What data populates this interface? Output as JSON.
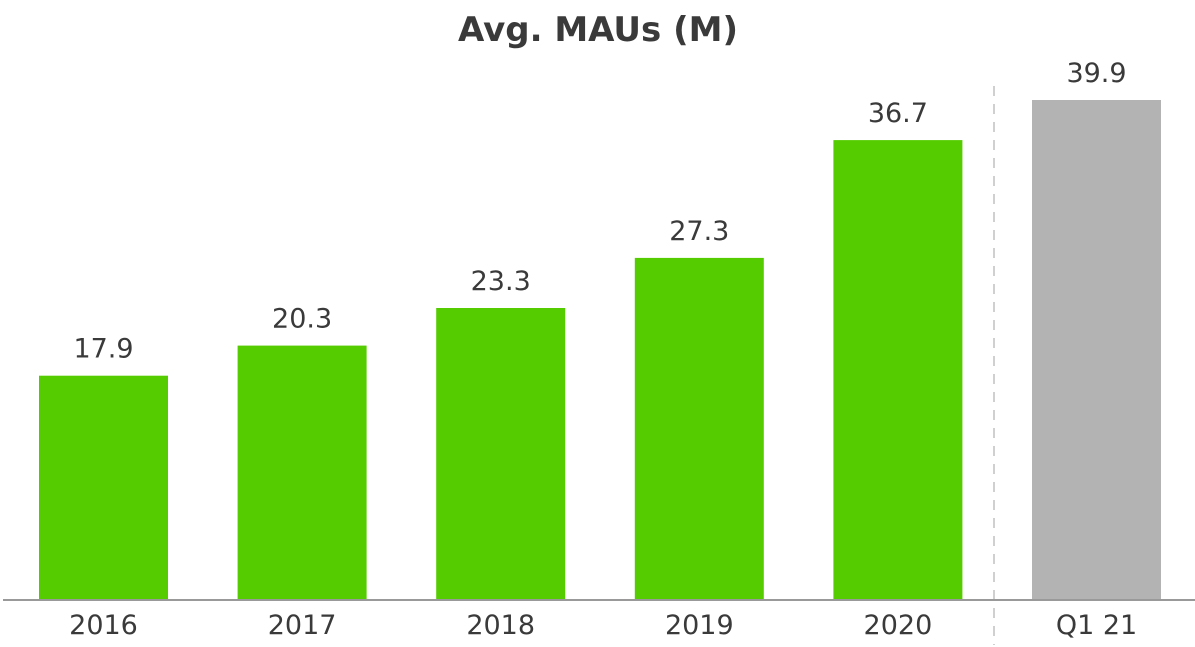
{
  "chart_data": {
    "type": "bar",
    "title": "Avg. MAUs (M)",
    "xlabel": "",
    "ylabel": "",
    "categories": [
      "2016",
      "2017",
      "2018",
      "2019",
      "2020",
      "Q1 21"
    ],
    "values": [
      17.9,
      20.3,
      23.3,
      27.3,
      36.7,
      39.9
    ],
    "value_labels": [
      "17.9",
      "20.3",
      "23.3",
      "27.3",
      "36.7",
      "39.9"
    ],
    "ylim": [
      0,
      39.9
    ],
    "grid": false,
    "legend": "none",
    "colors": {
      "annual": "#55cc00",
      "quarter": "#b3b3b3",
      "text": "#3a3a3a",
      "axis": "#999999",
      "divider": "#d0d0d0"
    },
    "highlighted_category": "Q1 21"
  }
}
